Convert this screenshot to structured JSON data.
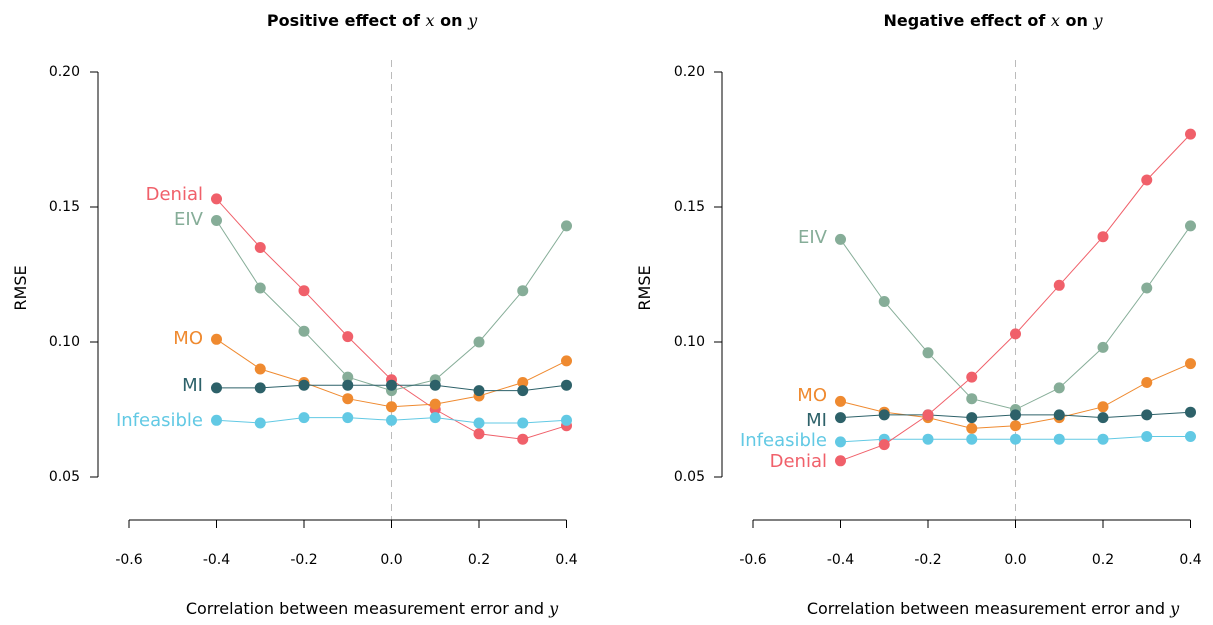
{
  "chart_data": [
    {
      "type": "line",
      "title": "Positive effect of x on y",
      "title_parts": [
        "Positive effect of ",
        "x",
        " on ",
        "y"
      ],
      "xlabel_parts": [
        "Correlation between measurement error and ",
        "y"
      ],
      "ylabel": "RMSE",
      "xlim": [
        -0.6,
        0.4
      ],
      "ylim": [
        0.05,
        0.2
      ],
      "x_ticks": [
        "-0.6",
        "-0.4",
        "-0.2",
        "0.0",
        "0.2",
        "0.4"
      ],
      "y_ticks": [
        "0.05",
        "0.10",
        "0.15",
        "0.20"
      ],
      "reference_line_x": 0.0,
      "x": [
        -0.4,
        -0.3,
        -0.2,
        -0.1,
        0.0,
        0.1,
        0.2,
        0.3,
        0.4
      ],
      "series": [
        {
          "name": "Denial",
          "color": "#f0606a",
          "values": [
            0.153,
            0.135,
            0.119,
            0.102,
            0.086,
            0.075,
            0.066,
            0.064,
            0.069
          ]
        },
        {
          "name": "EIV",
          "color": "#86ad98",
          "values": [
            0.145,
            0.12,
            0.104,
            0.087,
            0.082,
            0.086,
            0.1,
            0.119,
            0.143
          ]
        },
        {
          "name": "MO",
          "color": "#ef8a30",
          "values": [
            0.101,
            0.09,
            0.085,
            0.079,
            0.076,
            0.077,
            0.08,
            0.085,
            0.093
          ]
        },
        {
          "name": "MI",
          "color": "#2d6169",
          "values": [
            0.083,
            0.083,
            0.084,
            0.084,
            0.084,
            0.084,
            0.082,
            0.082,
            0.084
          ]
        },
        {
          "name": "Infeasible",
          "color": "#62c9e4",
          "values": [
            0.071,
            0.07,
            0.072,
            0.072,
            0.071,
            0.072,
            0.07,
            0.07,
            0.071
          ]
        }
      ]
    },
    {
      "type": "line",
      "title": "Negative effect of x on y",
      "title_parts": [
        "Negative effect of ",
        "x",
        " on ",
        "y"
      ],
      "xlabel_parts": [
        "Correlation between measurement error and ",
        "y"
      ],
      "ylabel": "RMSE",
      "xlim": [
        -0.6,
        0.4
      ],
      "ylim": [
        0.05,
        0.2
      ],
      "x_ticks": [
        "-0.6",
        "-0.4",
        "-0.2",
        "0.0",
        "0.2",
        "0.4"
      ],
      "y_ticks": [
        "0.05",
        "0.10",
        "0.15",
        "0.20"
      ],
      "reference_line_x": 0.0,
      "x": [
        -0.4,
        -0.3,
        -0.2,
        -0.1,
        0.0,
        0.1,
        0.2,
        0.3,
        0.4
      ],
      "series": [
        {
          "name": "EIV",
          "color": "#86ad98",
          "values": [
            0.138,
            0.115,
            0.096,
            0.079,
            0.075,
            0.083,
            0.098,
            0.12,
            0.143
          ]
        },
        {
          "name": "MO",
          "color": "#ef8a30",
          "values": [
            0.078,
            0.074,
            0.072,
            0.068,
            0.069,
            0.072,
            0.076,
            0.085,
            0.092
          ]
        },
        {
          "name": "MI",
          "color": "#2d6169",
          "values": [
            0.072,
            0.073,
            0.073,
            0.072,
            0.073,
            0.073,
            0.072,
            0.073,
            0.074
          ]
        },
        {
          "name": "Infeasible",
          "color": "#62c9e4",
          "values": [
            0.063,
            0.064,
            0.064,
            0.064,
            0.064,
            0.064,
            0.064,
            0.065,
            0.065
          ]
        },
        {
          "name": "Denial",
          "color": "#f0606a",
          "values": [
            0.056,
            0.062,
            0.073,
            0.087,
            0.103,
            0.121,
            0.139,
            0.16,
            0.177
          ]
        }
      ]
    }
  ]
}
